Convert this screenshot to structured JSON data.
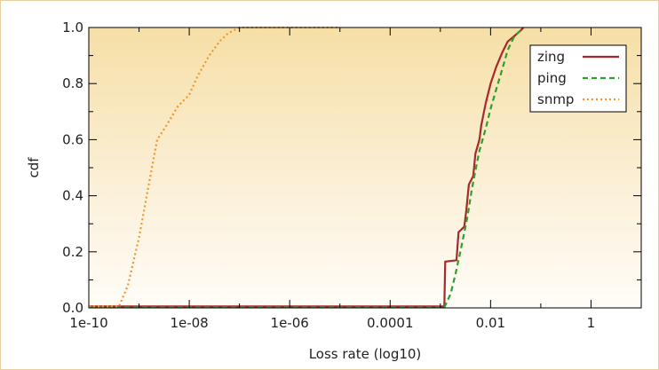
{
  "chart_data": {
    "type": "line",
    "xlabel": "Loss rate (log10)",
    "ylabel": "cdf",
    "x_scale": "log10",
    "xlim": [
      1e-10,
      10
    ],
    "ylim": [
      0,
      1
    ],
    "x_ticks": [
      {
        "value": 1e-10,
        "label": "1e-10"
      },
      {
        "value": 1e-08,
        "label": "1e-08"
      },
      {
        "value": 1e-06,
        "label": "1e-06"
      },
      {
        "value": 0.0001,
        "label": "0.0001"
      },
      {
        "value": 0.01,
        "label": "0.01"
      },
      {
        "value": 1,
        "label": "1"
      }
    ],
    "y_ticks": [
      {
        "value": 0,
        "label": "0.0"
      },
      {
        "value": 0.2,
        "label": "0.2"
      },
      {
        "value": 0.4,
        "label": "0.4"
      },
      {
        "value": 0.6,
        "label": "0.6"
      },
      {
        "value": 0.8,
        "label": "0.8"
      },
      {
        "value": 1,
        "label": "1.0"
      }
    ],
    "legend_position": "top-right",
    "grid": false,
    "series": [
      {
        "name": "zing",
        "color": "#a52a2a",
        "dash": "solid",
        "points": [
          [
            1e-10,
            0.005
          ],
          [
            0.0012,
            0.005
          ],
          [
            0.00125,
            0.165
          ],
          [
            0.0021,
            0.17
          ],
          [
            0.0023,
            0.27
          ],
          [
            0.003,
            0.29
          ],
          [
            0.0033,
            0.35
          ],
          [
            0.0037,
            0.44
          ],
          [
            0.0045,
            0.47
          ],
          [
            0.005,
            0.55
          ],
          [
            0.006,
            0.6
          ],
          [
            0.0065,
            0.65
          ],
          [
            0.008,
            0.73
          ],
          [
            0.01,
            0.8
          ],
          [
            0.013,
            0.86
          ],
          [
            0.017,
            0.91
          ],
          [
            0.022,
            0.95
          ],
          [
            0.03,
            0.97
          ],
          [
            0.04,
            0.99
          ],
          [
            0.045,
            1.0
          ]
        ]
      },
      {
        "name": "ping",
        "color": "#2ca02c",
        "dash": "dashed",
        "points": [
          [
            1e-10,
            0.002
          ],
          [
            0.0012,
            0.002
          ],
          [
            0.0016,
            0.05
          ],
          [
            0.002,
            0.12
          ],
          [
            0.0025,
            0.2
          ],
          [
            0.003,
            0.27
          ],
          [
            0.0035,
            0.33
          ],
          [
            0.0042,
            0.42
          ],
          [
            0.005,
            0.49
          ],
          [
            0.006,
            0.56
          ],
          [
            0.008,
            0.64
          ],
          [
            0.01,
            0.71
          ],
          [
            0.013,
            0.78
          ],
          [
            0.017,
            0.85
          ],
          [
            0.022,
            0.92
          ],
          [
            0.03,
            0.97
          ],
          [
            0.04,
            0.99
          ],
          [
            0.045,
            1.0
          ]
        ]
      },
      {
        "name": "snmp",
        "color": "#f0962a",
        "dash": "dotted",
        "points": [
          [
            1e-10,
            0.005
          ],
          [
            4e-10,
            0.005
          ],
          [
            6e-10,
            0.08
          ],
          [
            1e-09,
            0.25
          ],
          [
            1.6e-09,
            0.45
          ],
          [
            2.3e-09,
            0.6
          ],
          [
            3.5e-09,
            0.65
          ],
          [
            6e-09,
            0.72
          ],
          [
            1e-08,
            0.76
          ],
          [
            1.5e-08,
            0.83
          ],
          [
            2.5e-08,
            0.9
          ],
          [
            4e-08,
            0.95
          ],
          [
            6e-08,
            0.98
          ],
          [
            1e-07,
            1.0
          ],
          [
            1e-05,
            1.0
          ]
        ]
      }
    ]
  }
}
